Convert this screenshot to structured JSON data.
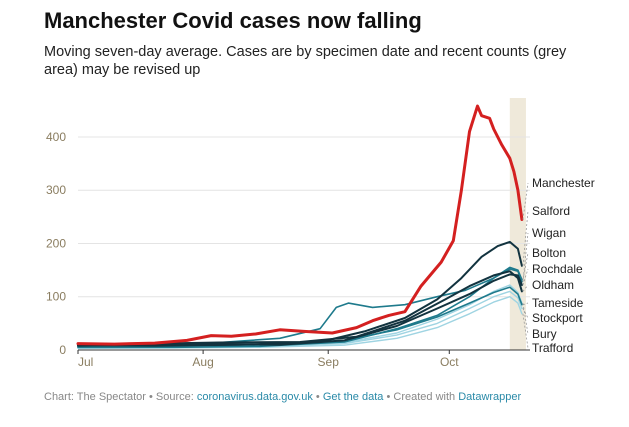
{
  "title": "Manchester Covid cases now falling",
  "subtitle": "Moving seven-day average. Cases are by specimen date and recent counts (grey area) may be revised up",
  "footer": {
    "chart_by": "Chart: The Spectator",
    "source_prefix": "Source:",
    "source_link": "coronavirus.data.gov.uk",
    "data_link": "Get the data",
    "created_prefix": "Created with",
    "created_link": "Datawrapper",
    "sep": "•"
  },
  "colors": {
    "manchester": "#d42020",
    "dark": "#12333f",
    "mid": "#1e7a8c",
    "light": "#9fd4e2",
    "shade": "#efe9da",
    "axis_text": "#8a7d60"
  },
  "chart_data": {
    "type": "line",
    "x_ticks": [
      "Jul",
      "Aug",
      "Sep",
      "Oct"
    ],
    "y_ticks": [
      0,
      100,
      200,
      300,
      400
    ],
    "ylim": [
      0,
      460
    ],
    "xlim": [
      "2020-07-01",
      "2020-10-21"
    ],
    "grid": true,
    "shaded_region": [
      "2020-10-16",
      "2020-10-20"
    ],
    "series": [
      {
        "name": "Manchester",
        "style": "red",
        "values": [
          [
            "2020-07-01",
            12
          ],
          [
            "2020-07-10",
            11
          ],
          [
            "2020-07-20",
            13
          ],
          [
            "2020-07-28",
            18
          ],
          [
            "2020-08-03",
            27
          ],
          [
            "2020-08-08",
            26
          ],
          [
            "2020-08-14",
            30
          ],
          [
            "2020-08-20",
            38
          ],
          [
            "2020-08-26",
            35
          ],
          [
            "2020-09-02",
            32
          ],
          [
            "2020-09-08",
            42
          ],
          [
            "2020-09-12",
            55
          ],
          [
            "2020-09-16",
            65
          ],
          [
            "2020-09-20",
            72
          ],
          [
            "2020-09-24",
            120
          ],
          [
            "2020-09-29",
            165
          ],
          [
            "2020-10-02",
            205
          ],
          [
            "2020-10-04",
            300
          ],
          [
            "2020-10-06",
            410
          ],
          [
            "2020-10-08",
            458
          ],
          [
            "2020-10-09",
            440
          ],
          [
            "2020-10-11",
            435
          ],
          [
            "2020-10-12",
            415
          ],
          [
            "2020-10-14",
            385
          ],
          [
            "2020-10-16",
            360
          ],
          [
            "2020-10-17",
            335
          ],
          [
            "2020-10-18",
            300
          ],
          [
            "2020-10-19",
            245
          ]
        ]
      },
      {
        "name": "Salford",
        "style": "dark",
        "values": [
          [
            "2020-07-01",
            9
          ],
          [
            "2020-07-20",
            8
          ],
          [
            "2020-08-10",
            10
          ],
          [
            "2020-08-30",
            15
          ],
          [
            "2020-09-10",
            35
          ],
          [
            "2020-09-20",
            60
          ],
          [
            "2020-09-28",
            95
          ],
          [
            "2020-10-04",
            135
          ],
          [
            "2020-10-09",
            175
          ],
          [
            "2020-10-13",
            195
          ],
          [
            "2020-10-16",
            203
          ],
          [
            "2020-10-18",
            190
          ],
          [
            "2020-10-19",
            158
          ]
        ]
      },
      {
        "name": "Wigan",
        "style": "mid",
        "values": [
          [
            "2020-07-01",
            5
          ],
          [
            "2020-07-25",
            5
          ],
          [
            "2020-08-15",
            7
          ],
          [
            "2020-09-05",
            15
          ],
          [
            "2020-09-18",
            40
          ],
          [
            "2020-09-28",
            65
          ],
          [
            "2020-10-06",
            100
          ],
          [
            "2020-10-12",
            135
          ],
          [
            "2020-10-16",
            152
          ],
          [
            "2020-10-18",
            148
          ],
          [
            "2020-10-19",
            128
          ]
        ]
      },
      {
        "name": "Bolton",
        "style": "mid",
        "values": [
          [
            "2020-07-01",
            6
          ],
          [
            "2020-07-20",
            8
          ],
          [
            "2020-08-05",
            14
          ],
          [
            "2020-08-20",
            22
          ],
          [
            "2020-08-30",
            40
          ],
          [
            "2020-09-03",
            80
          ],
          [
            "2020-09-06",
            88
          ],
          [
            "2020-09-12",
            80
          ],
          [
            "2020-09-20",
            85
          ],
          [
            "2020-09-28",
            100
          ],
          [
            "2020-10-05",
            112
          ],
          [
            "2020-10-12",
            135
          ],
          [
            "2020-10-16",
            155
          ],
          [
            "2020-10-18",
            150
          ],
          [
            "2020-10-19",
            132
          ]
        ]
      },
      {
        "name": "Rochdale",
        "style": "dark",
        "values": [
          [
            "2020-07-01",
            8
          ],
          [
            "2020-07-15",
            10
          ],
          [
            "2020-08-01",
            12
          ],
          [
            "2020-08-20",
            10
          ],
          [
            "2020-09-05",
            18
          ],
          [
            "2020-09-18",
            45
          ],
          [
            "2020-09-28",
            78
          ],
          [
            "2020-10-06",
            105
          ],
          [
            "2020-10-12",
            130
          ],
          [
            "2020-10-16",
            142
          ],
          [
            "2020-10-18",
            140
          ],
          [
            "2020-10-19",
            122
          ]
        ]
      },
      {
        "name": "Oldham",
        "style": "dark",
        "values": [
          [
            "2020-07-01",
            10
          ],
          [
            "2020-07-20",
            12
          ],
          [
            "2020-08-05",
            14
          ],
          [
            "2020-08-25",
            15
          ],
          [
            "2020-09-08",
            25
          ],
          [
            "2020-09-20",
            55
          ],
          [
            "2020-09-30",
            95
          ],
          [
            "2020-10-06",
            120
          ],
          [
            "2020-10-12",
            140
          ],
          [
            "2020-10-16",
            148
          ],
          [
            "2020-10-18",
            135
          ],
          [
            "2020-10-19",
            110
          ]
        ]
      },
      {
        "name": "Tameside",
        "style": "mid",
        "values": [
          [
            "2020-07-01",
            6
          ],
          [
            "2020-07-25",
            8
          ],
          [
            "2020-08-15",
            10
          ],
          [
            "2020-09-05",
            18
          ],
          [
            "2020-09-18",
            38
          ],
          [
            "2020-09-28",
            62
          ],
          [
            "2020-10-06",
            88
          ],
          [
            "2020-10-12",
            108
          ],
          [
            "2020-10-16",
            118
          ],
          [
            "2020-10-18",
            105
          ],
          [
            "2020-10-19",
            85
          ]
        ]
      },
      {
        "name": "Stockport",
        "style": "light",
        "values": [
          [
            "2020-07-01",
            4
          ],
          [
            "2020-07-25",
            5
          ],
          [
            "2020-08-15",
            6
          ],
          [
            "2020-09-05",
            12
          ],
          [
            "2020-09-18",
            28
          ],
          [
            "2020-09-28",
            50
          ],
          [
            "2020-10-06",
            78
          ],
          [
            "2020-10-12",
            100
          ],
          [
            "2020-10-16",
            110
          ],
          [
            "2020-10-18",
            98
          ],
          [
            "2020-10-19",
            78
          ]
        ]
      },
      {
        "name": "Bury",
        "style": "light",
        "values": [
          [
            "2020-07-01",
            5
          ],
          [
            "2020-07-25",
            6
          ],
          [
            "2020-08-15",
            8
          ],
          [
            "2020-09-05",
            14
          ],
          [
            "2020-09-18",
            32
          ],
          [
            "2020-09-28",
            58
          ],
          [
            "2020-10-06",
            85
          ],
          [
            "2020-10-12",
            110
          ],
          [
            "2020-10-16",
            122
          ],
          [
            "2020-10-18",
            108
          ],
          [
            "2020-10-19",
            88
          ]
        ]
      },
      {
        "name": "Trafford",
        "style": "light",
        "values": [
          [
            "2020-07-01",
            3
          ],
          [
            "2020-07-25",
            4
          ],
          [
            "2020-08-15",
            5
          ],
          [
            "2020-09-05",
            9
          ],
          [
            "2020-09-18",
            22
          ],
          [
            "2020-09-28",
            42
          ],
          [
            "2020-10-06",
            68
          ],
          [
            "2020-10-12",
            90
          ],
          [
            "2020-10-16",
            100
          ],
          [
            "2020-10-18",
            88
          ],
          [
            "2020-10-19",
            68
          ]
        ]
      }
    ]
  }
}
